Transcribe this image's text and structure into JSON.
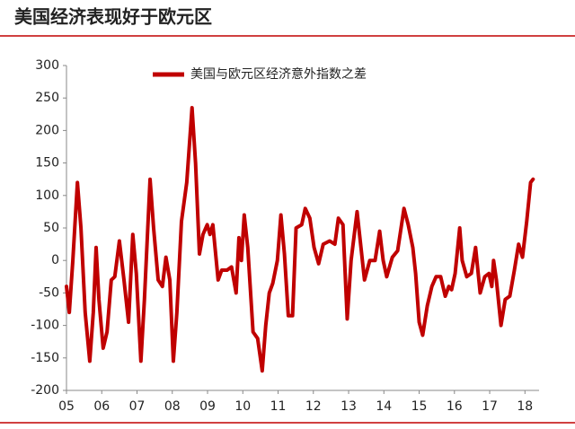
{
  "chart_data": {
    "type": "line",
    "title": "美国经济表现好于欧元区",
    "series": [
      {
        "name": "美国与欧元区经济意外指数之差",
        "color": "#c00000",
        "x": [
          5.0,
          5.08,
          5.18,
          5.31,
          5.41,
          5.53,
          5.66,
          5.76,
          5.84,
          5.92,
          6.04,
          6.15,
          6.27,
          6.37,
          6.5,
          6.63,
          6.76,
          6.88,
          6.98,
          7.11,
          7.21,
          7.37,
          7.47,
          7.6,
          7.72,
          7.82,
          7.93,
          8.03,
          8.13,
          8.26,
          8.41,
          8.56,
          8.66,
          8.77,
          8.87,
          8.99,
          9.07,
          9.15,
          9.3,
          9.4,
          9.55,
          9.68,
          9.81,
          9.89,
          9.96,
          10.04,
          10.14,
          10.29,
          10.42,
          10.55,
          10.65,
          10.75,
          10.85,
          10.98,
          11.08,
          11.18,
          11.29,
          11.41,
          11.51,
          11.67,
          11.77,
          11.9,
          12.02,
          12.15,
          12.28,
          12.46,
          12.61,
          12.71,
          12.84,
          12.96,
          13.07,
          13.24,
          13.35,
          13.45,
          13.6,
          13.75,
          13.88,
          13.98,
          14.08,
          14.24,
          14.39,
          14.57,
          14.69,
          14.82,
          14.9,
          15.0,
          15.1,
          15.23,
          15.36,
          15.48,
          15.61,
          15.74,
          15.84,
          15.92,
          16.02,
          16.15,
          16.22,
          16.35,
          16.48,
          16.6,
          16.73,
          16.86,
          16.98,
          17.06,
          17.11,
          17.19,
          17.32,
          17.44,
          17.57,
          17.7,
          17.82,
          17.93,
          18.05,
          18.16,
          18.23
        ],
        "values": [
          -40,
          -80,
          0,
          120,
          50,
          -80,
          -155,
          -80,
          20,
          -60,
          -135,
          -110,
          -30,
          -25,
          30,
          -30,
          -95,
          40,
          -20,
          -155,
          -60,
          125,
          50,
          -30,
          -40,
          5,
          -30,
          -155,
          -80,
          60,
          120,
          235,
          150,
          10,
          40,
          55,
          40,
          55,
          -30,
          -15,
          -15,
          -10,
          -50,
          35,
          0,
          70,
          20,
          -110,
          -120,
          -170,
          -100,
          -50,
          -35,
          0,
          70,
          10,
          -85,
          -85,
          50,
          55,
          80,
          65,
          20,
          -5,
          25,
          30,
          25,
          65,
          55,
          -90,
          0,
          75,
          20,
          -30,
          0,
          0,
          45,
          0,
          -25,
          5,
          15,
          80,
          55,
          20,
          -20,
          -95,
          -115,
          -70,
          -40,
          -25,
          -25,
          -55,
          -40,
          -45,
          -20,
          50,
          0,
          -25,
          -20,
          20,
          -50,
          -25,
          -20,
          -40,
          0,
          -30,
          -100,
          -60,
          -55,
          -15,
          25,
          5,
          60,
          120,
          125
        ]
      }
    ],
    "xlim": [
      5,
      18.4
    ],
    "xticks": [
      {
        "value": 5,
        "label": "05"
      },
      {
        "value": 6,
        "label": "06"
      },
      {
        "value": 7,
        "label": "07"
      },
      {
        "value": 8,
        "label": "08"
      },
      {
        "value": 9,
        "label": "09"
      },
      10,
      11,
      12,
      13,
      14,
      15,
      16,
      17,
      18
    ],
    "ylim": [
      -200,
      300
    ],
    "yticks": [
      -200,
      -150,
      -100,
      -50,
      0,
      50,
      100,
      150,
      200,
      250,
      300
    ],
    "legend": "top"
  }
}
